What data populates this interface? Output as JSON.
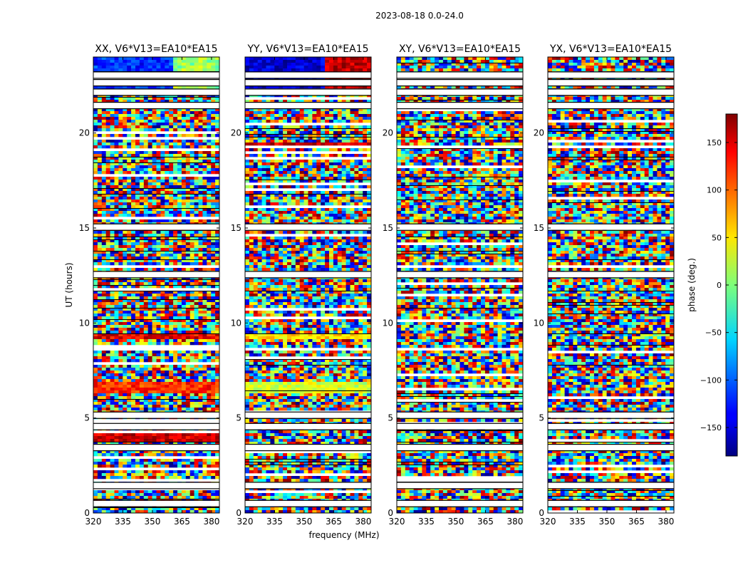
{
  "chart_data": {
    "type": "heatmap",
    "suptitle": "2023-08-18 0.0-24.0",
    "xlabel": "frequency (MHz)",
    "ylabel": "UT (hours)",
    "xlim": [
      320,
      384
    ],
    "ylim": [
      0,
      24
    ],
    "x_ticks": [
      320,
      335,
      350,
      365,
      380
    ],
    "y_ticks": [
      0,
      5,
      10,
      15,
      20
    ],
    "panels": [
      {
        "title": "XX, V6*V13=EA10*EA15",
        "pol": "XX"
      },
      {
        "title": "YY, V6*V13=EA10*EA15",
        "pol": "YY"
      },
      {
        "title": "XY, V6*V13=EA10*EA15",
        "pol": "XY"
      },
      {
        "title": "YX, V6*V13=EA10*EA15",
        "pol": "YX"
      }
    ],
    "colorbar": {
      "label": "phase (deg.)",
      "range": [
        -180,
        180
      ],
      "ticks": [
        -150,
        -100,
        -50,
        0,
        50,
        100,
        150
      ],
      "colormap": "jet"
    },
    "flagged_ut_hours": [
      0.5,
      1.45,
      3.45,
      4.55,
      5.15,
      12.55,
      15.05,
      21.45,
      22.15,
      22.65,
      23.05
    ],
    "coherent_bands": [
      {
        "panel": "XX",
        "ut_start": 22.2,
        "ut_end": 24.0,
        "phase_deg": -120,
        "split_mhz": 361,
        "phase_after_deg": 10
      },
      {
        "panel": "XX",
        "ut_start": 6.35,
        "ut_end": 6.95,
        "phase_deg": 120
      },
      {
        "panel": "XX",
        "ut_start": 9.1,
        "ut_end": 9.5,
        "phase_deg": 140
      },
      {
        "panel": "XX",
        "ut_start": 14.8,
        "ut_end": 15.0,
        "phase_deg": 165
      },
      {
        "panel": "XX",
        "ut_start": 3.8,
        "ut_end": 4.4,
        "phase_deg": 150
      },
      {
        "panel": "YY",
        "ut_start": 22.2,
        "ut_end": 24.0,
        "phase_deg": -150,
        "split_mhz": 361,
        "phase_after_deg": 160
      },
      {
        "panel": "YY",
        "ut_start": 6.35,
        "ut_end": 6.95,
        "phase_deg": 30
      },
      {
        "panel": "YY",
        "ut_start": 9.1,
        "ut_end": 9.5,
        "phase_deg": 60
      },
      {
        "panel": "YY",
        "ut_start": 19.2,
        "ut_end": 19.5,
        "phase_deg": 150
      }
    ]
  }
}
